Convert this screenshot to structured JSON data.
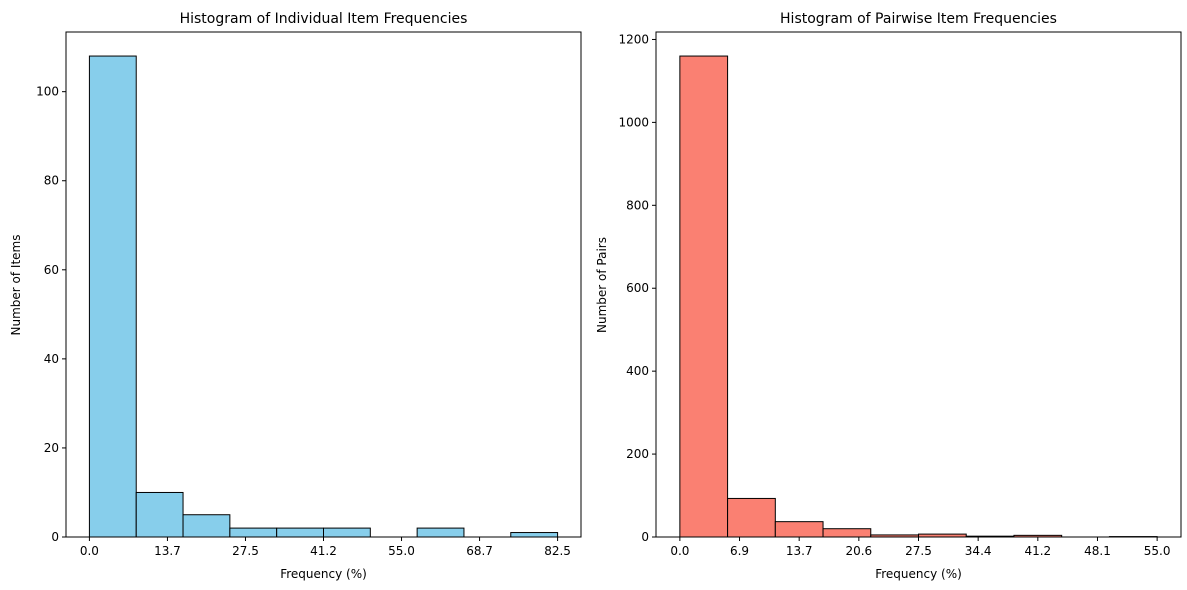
{
  "chart_data": [
    {
      "type": "bar",
      "title": "Histogram of Individual Item Frequencies",
      "xlabel": "Frequency (%)",
      "ylabel": "Number of Items",
      "bin_edges": [
        0.0,
        8.25,
        16.5,
        24.75,
        33.0,
        41.25,
        49.5,
        57.75,
        66.0,
        74.25,
        82.5
      ],
      "values": [
        108,
        10,
        5,
        2,
        2,
        2,
        0,
        2,
        0,
        1
      ],
      "xticks": [
        "0.0",
        "13.7",
        "27.5",
        "41.2",
        "55.0",
        "68.7",
        "82.5"
      ],
      "xtick_values": [
        0.0,
        13.75,
        27.5,
        41.25,
        55.0,
        68.75,
        82.5
      ],
      "yticks": [
        "0",
        "20",
        "40",
        "60",
        "80",
        "100"
      ],
      "ytick_values": [
        0,
        20,
        40,
        60,
        80,
        100
      ],
      "xlim": [
        -4.125,
        86.625
      ],
      "ylim": [
        0,
        113.4
      ],
      "colors": {
        "bar": "#87ceeb",
        "edge": "#000000"
      },
      "grid": false
    },
    {
      "type": "bar",
      "title": "Histogram of Pairwise Item Frequencies",
      "xlabel": "Frequency (%)",
      "ylabel": "Number of Pairs",
      "bin_edges": [
        0.0,
        5.5,
        11.0,
        16.5,
        22.0,
        27.5,
        33.0,
        38.5,
        44.0,
        49.5,
        55.0
      ],
      "values": [
        1160,
        93,
        37,
        20,
        5,
        7,
        2,
        4,
        0,
        1
      ],
      "xticks": [
        "0.0",
        "6.9",
        "13.7",
        "20.6",
        "27.5",
        "34.4",
        "41.2",
        "48.1",
        "55.0"
      ],
      "xtick_values": [
        0.0,
        6.875,
        13.75,
        20.625,
        27.5,
        34.375,
        41.25,
        48.125,
        55.0
      ],
      "yticks": [
        "0",
        "200",
        "400",
        "600",
        "800",
        "1000",
        "1200"
      ],
      "ytick_values": [
        0,
        200,
        400,
        600,
        800,
        1000,
        1200
      ],
      "xlim": [
        -2.75,
        57.75
      ],
      "ylim": [
        0,
        1218
      ],
      "colors": {
        "bar": "#fa8072",
        "edge": "#000000"
      },
      "grid": false
    }
  ]
}
